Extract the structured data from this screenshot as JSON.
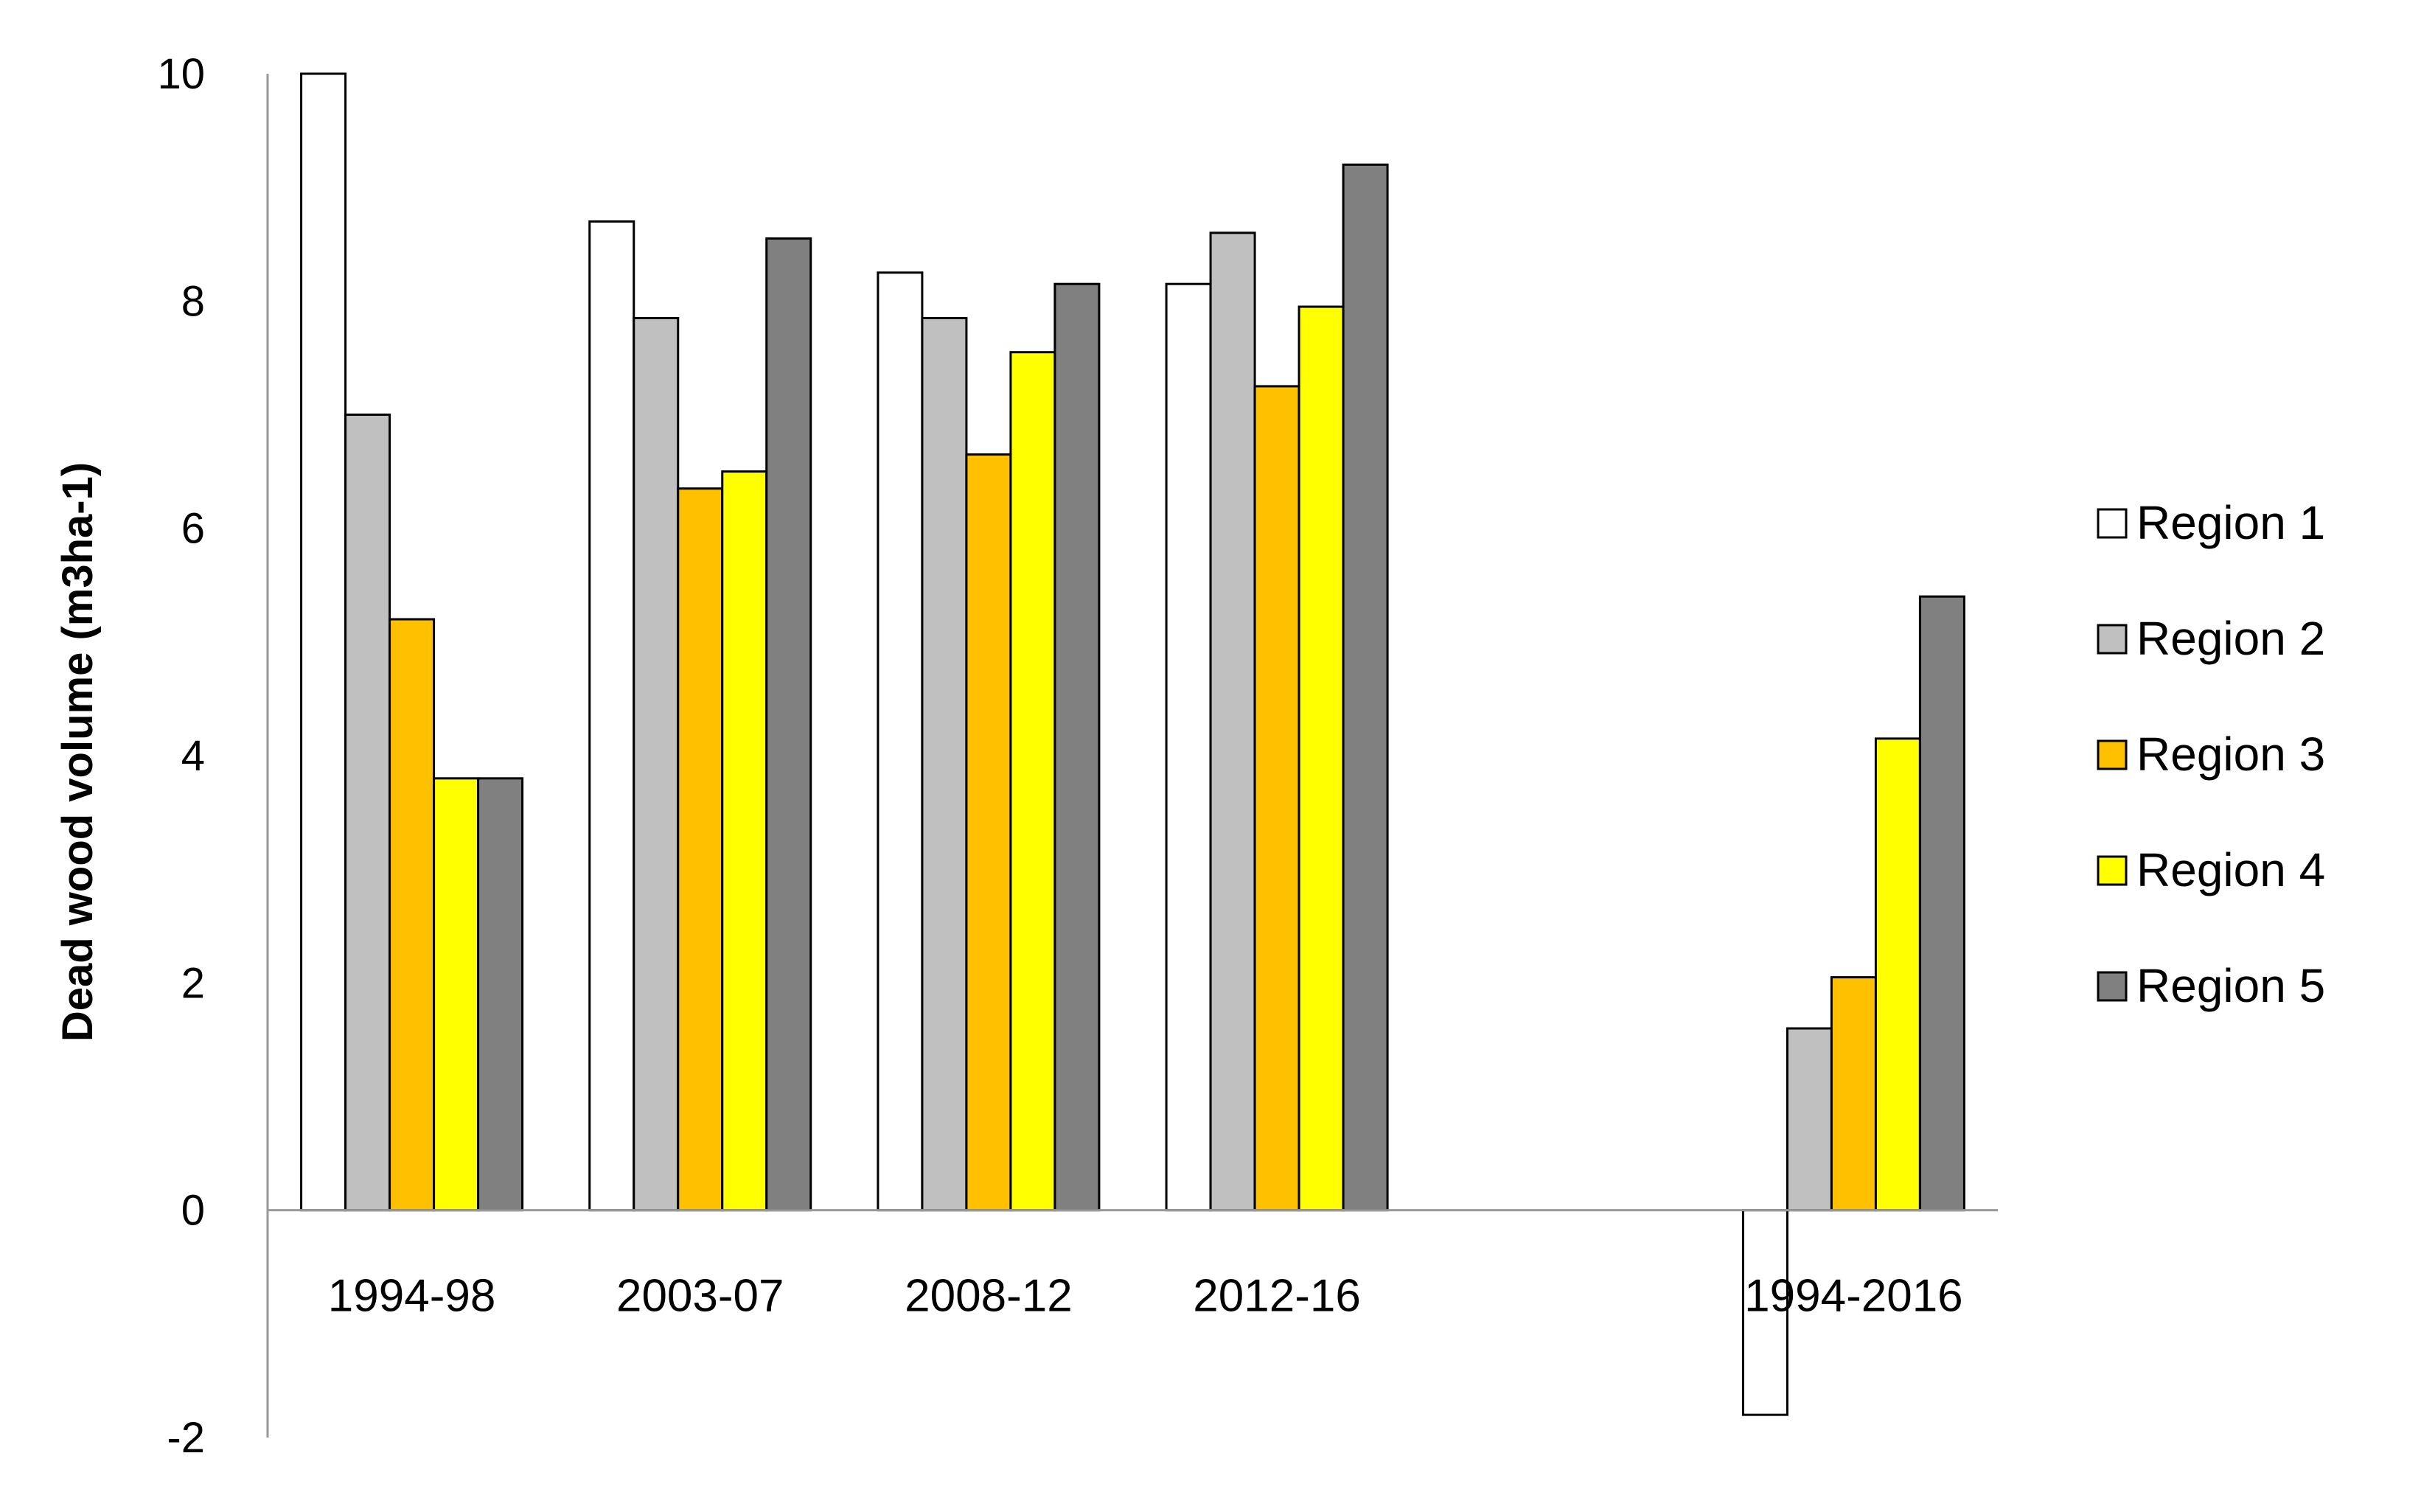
{
  "chart_data": {
    "type": "bar",
    "title": "",
    "xlabel": "",
    "ylabel": "Dead wood volume (m3ha-1)",
    "ylim": [
      -2,
      10
    ],
    "yticks": [
      -2,
      0,
      2,
      4,
      6,
      8,
      10
    ],
    "grid": false,
    "legend_position": "right",
    "categories": [
      "1994-98",
      "2003-07",
      "2008-12",
      "2012-16",
      "1994-2016"
    ],
    "series": [
      {
        "name": "Region 1",
        "color": "#ffffff",
        "values": [
          10.0,
          8.7,
          8.25,
          8.15,
          -1.8
        ]
      },
      {
        "name": "Region 2",
        "color": "#c0c0c0",
        "values": [
          7.0,
          7.85,
          7.85,
          8.6,
          1.6
        ]
      },
      {
        "name": "Region 3",
        "color": "#ffc000",
        "values": [
          5.2,
          6.35,
          6.65,
          7.25,
          2.05
        ]
      },
      {
        "name": "Region 4",
        "color": "#ffff00",
        "values": [
          3.8,
          6.5,
          7.55,
          7.95,
          4.15
        ]
      },
      {
        "name": "Region 5",
        "color": "#808080",
        "values": [
          3.8,
          8.55,
          8.15,
          9.2,
          5.4
        ]
      }
    ]
  }
}
